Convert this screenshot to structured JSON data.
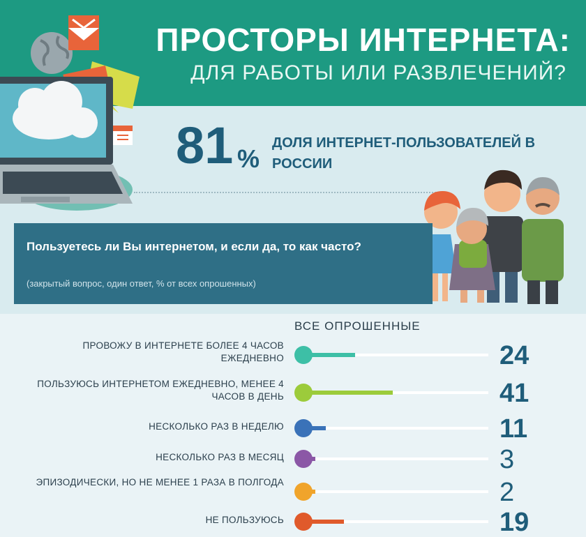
{
  "header": {
    "title": "ПРОСТОРЫ ИНТЕРНЕТА:",
    "subtitle": "ДЛЯ РАБОТЫ ИЛИ РАЗВЛЕЧЕНИЙ?"
  },
  "stat": {
    "number": "81",
    "percent": "%",
    "label": "ДОЛЯ ИНТЕРНЕТ-ПОЛЬЗОВАТЕЛЕЙ В РОССИИ"
  },
  "question": {
    "text": "Пользуетесь ли Вы интернетом, и если да, то как часто?",
    "note": "(закрытый вопрос, один ответ, % от всех опрошенных)"
  },
  "colors": {
    "header_bg": "#1d9a82",
    "accent_dark": "#1f5d7a",
    "question_bg": "#2f6f86"
  },
  "icons": [
    "globe-icon",
    "envelope-icon",
    "laptop-icon",
    "cloud-icon",
    "chat-bubble-icon",
    "calendar-icon",
    "family-illustration"
  ],
  "chart_data": {
    "type": "bar",
    "title": "ВСЕ ОПРОШЕННЫЕ",
    "categories": [
      "ПРОВОЖУ В ИНТЕРНЕТЕ БОЛЕЕ 4 ЧАСОВ  ЕЖЕДНЕВНО",
      "ПОЛЬЗУЮСЬ ИНТЕРНЕТОМ ЕЖЕДНЕВНО, МЕНЕЕ 4 ЧАСОВ В ДЕНЬ",
      "НЕСКОЛЬКО РАЗ В НЕДЕЛЮ",
      "НЕСКОЛЬКО РАЗ В МЕСЯЦ",
      "ЭПИЗОДИЧЕСКИ, НО НЕ МЕНЕЕ 1 РАЗА В ПОЛГОДА",
      "НЕ ПОЛЬЗУЮСЬ"
    ],
    "values": [
      24,
      41,
      11,
      3,
      2,
      19
    ],
    "value_labels": [
      "24",
      "41",
      "11",
      "3",
      "2",
      "19"
    ],
    "colors": [
      "#3dbfa6",
      "#9ccb3b",
      "#3a72b8",
      "#8b57a6",
      "#f0a42b",
      "#e05a2b"
    ],
    "xlim": [
      0,
      100
    ],
    "grid": false,
    "legend": "none"
  }
}
